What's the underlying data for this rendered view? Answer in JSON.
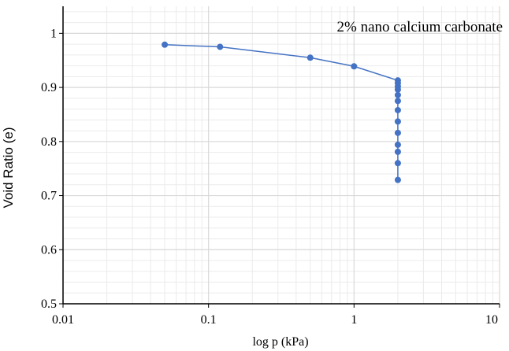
{
  "chart_data": {
    "type": "scatter",
    "annotation": "2% nano calcium carbonate",
    "xlabel": "log p (kPa)",
    "ylabel": "Void Ratio (e)",
    "x_scale": "log",
    "xlim": [
      0.01,
      10
    ],
    "ylim": [
      0.5,
      1.05
    ],
    "x_ticks": [
      0.01,
      0.1,
      1,
      10
    ],
    "x_tick_labels": [
      "0.01",
      "0.1",
      "1",
      "10"
    ],
    "y_ticks": [
      0.5,
      0.6,
      0.7,
      0.8,
      0.9,
      1
    ],
    "y_tick_labels": [
      "0.5",
      "0.6",
      "0.7",
      "0.8",
      "0.9",
      "1"
    ],
    "grid": true,
    "minor_grid": true,
    "marker_style": "filled-circle",
    "line_style": "smooth",
    "colors": {
      "series": "#4472C4",
      "grid_major": "#d9d9d9",
      "grid_minor": "#ebebeb",
      "axis": "#000000"
    },
    "series": [
      {
        "x": [
          0.05,
          0.12,
          0.5,
          1,
          2,
          2,
          2,
          2,
          2,
          2,
          2,
          2,
          2,
          2,
          2,
          2,
          2
        ],
        "y": [
          0.979,
          0.975,
          0.955,
          0.939,
          0.913,
          0.908,
          0.902,
          0.896,
          0.886,
          0.875,
          0.858,
          0.837,
          0.816,
          0.794,
          0.781,
          0.76,
          0.729
        ]
      }
    ]
  }
}
